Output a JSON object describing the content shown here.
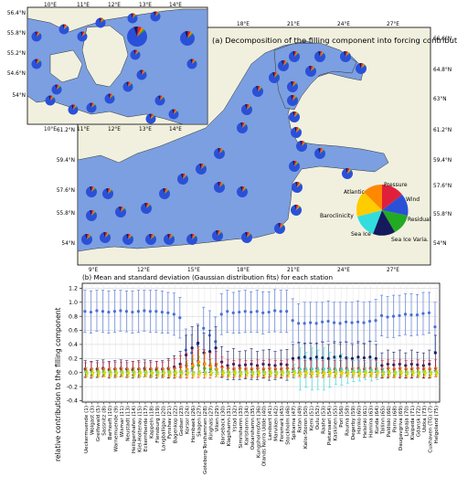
{
  "colors": {
    "sea": "#7b9fe0",
    "land": "#f1f0df",
    "pie_main": "#2b50d8",
    "blue_series": "#4a6fd8",
    "navy_series": "#162060",
    "red_series": "#e0203a",
    "green_series": "#22aa22",
    "orange_series": "#ff9900",
    "cyan_series": "#33dddd",
    "yellow_series": "#dddd00"
  },
  "panel_a": {
    "title": "(a) Decomposition of the filling component into forcing contributions",
    "lon_ticks": [
      "18°E",
      "21°E",
      "24°E",
      "27°E"
    ],
    "lon_ticks_bottom": [
      "9°E",
      "12°E",
      "15°E",
      "18°E",
      "21°E",
      "24°E",
      "27°E"
    ],
    "lat_ticks_left": [
      "61.2°N",
      "59.4°N",
      "57.6°N",
      "55.8°N",
      "54°N"
    ],
    "lat_ticks_right": [
      "66.6°N",
      "64.8°N",
      "63°N",
      "61.2°N",
      "59.4°N",
      "57.6°N",
      "55.8°N",
      "54°N"
    ],
    "inset_lon_ticks": [
      "10°E",
      "11°E",
      "12°E",
      "13°E",
      "14°E"
    ],
    "inset_lat_ticks": [
      "56.4°N",
      "55.8°N",
      "55.2°N",
      "54.6°N",
      "54°N"
    ],
    "legend_pie": {
      "labels": [
        "Pressure",
        "Wind",
        "Residual",
        "Sea Ice Varia.",
        "Sea Ice",
        "Baroclinicity",
        "Atlantic"
      ]
    }
  },
  "chart_data": {
    "type": "scatter",
    "title": "(b) Mean and standard deviation (Gaussian distribution fits) for each station",
    "ylabel": "relative contribution to the filling component",
    "ylim": [
      -0.42,
      1.27
    ],
    "yticks": [
      "-0.4",
      "-0.2",
      "0.0",
      "0.2",
      "0.4",
      "0.6",
      "0.8",
      "1.0",
      "1.2"
    ],
    "grid": true,
    "x": [
      "Ueckermuende (1)",
      "Wolgast (3)",
      "Greifswald (5)",
      "Sassnitz (8)",
      "Barhoeft (10)",
      "Warnemuende (9)",
      "Wismar (11)",
      "Neustadt (13)",
      "Heiligenhafen (14)",
      "Kiel-Holtenau (15)",
      "Eckernfoerde (17)",
      "Kappeln (18)",
      "Flensburg (19)",
      "Langballigau (20)",
      "Fynshav (21)",
      "Bagenkop (22)",
      "Gedser (23)",
      "Korsor (24)",
      "Hornbaek (26)",
      "Skagen (27)",
      "Goteborg-Torshamnen (28)",
      "Ringhals (27)",
      "Viken (29)",
      "Barseback (30)",
      "Klagshamn (31)",
      "Ystad (32)",
      "Simrishamn (33)",
      "Karlshamn (34)",
      "Oskarshamn (35)",
      "Kungsholmsfort (36)",
      "Olands Norra Udde (40)",
      "Landsort (41)",
      "Marviken (42)",
      "Forsmark (45)",
      "Stockholm (46)",
      "Spikarna (47)",
      "Ratan (49)",
      "Kalix-Storon (50)",
      "Kemi (51)",
      "Oulu (52)",
      "Raahe (53)",
      "Pietarsaari (54)",
      "Kaskinen (55)",
      "Pori (56)",
      "Rauma (58)",
      "Degerby (59)",
      "Hanko (60)",
      "Helsinki (61)",
      "Hamina (63)",
      "Kunda (64)",
      "Tallinn (65)",
      "Paldiski (66)",
      "Parnu (68)",
      "Daugavgriva (69)",
      "Liepaja (70)",
      "Klaipeda (71)",
      "Gdansk (72)",
      "Ustka (73)",
      "Cuxhaven (TG) (7)",
      "Helgoland (75)"
    ],
    "series": [
      {
        "values": [
          0.87,
          0.86,
          0.88,
          0.87,
          0.86,
          0.87,
          0.88,
          0.87,
          0.86,
          0.87,
          0.88,
          0.87,
          0.87,
          0.86,
          0.85,
          0.83,
          0.78,
          0.32,
          0.28,
          0.4,
          0.63,
          0.53,
          0.44,
          0.83,
          0.87,
          0.85,
          0.86,
          0.87,
          0.86,
          0.87,
          0.85,
          0.86,
          0.88,
          0.87,
          0.87,
          0.74,
          0.7,
          0.7,
          0.71,
          0.7,
          0.72,
          0.73,
          0.71,
          0.7,
          0.72,
          0.71,
          0.72,
          0.71,
          0.73,
          0.74,
          0.81,
          0.79,
          0.8,
          0.81,
          0.83,
          0.82,
          0.82,
          0.84,
          0.85,
          0.65
        ],
        "err": [
          0.3,
          0.3,
          0.29,
          0.3,
          0.3,
          0.3,
          0.29,
          0.29,
          0.3,
          0.3,
          0.29,
          0.3,
          0.3,
          0.3,
          0.29,
          0.3,
          0.29,
          0.3,
          0.26,
          0.29,
          0.3,
          0.35,
          0.35,
          0.29,
          0.3,
          0.29,
          0.3,
          0.3,
          0.29,
          0.3,
          0.3,
          0.29,
          0.3,
          0.3,
          0.3,
          0.31,
          0.28,
          0.3,
          0.29,
          0.3,
          0.28,
          0.29,
          0.29,
          0.3,
          0.28,
          0.29,
          0.3,
          0.29,
          0.28,
          0.3,
          0.29,
          0.29,
          0.3,
          0.29,
          0.29,
          0.3,
          0.29,
          0.3,
          0.29,
          0.35
        ]
      },
      {
        "values": [
          0.05,
          0.04,
          0.05,
          0.06,
          0.04,
          0.05,
          0.06,
          0.05,
          0.04,
          0.05,
          0.06,
          0.05,
          0.04,
          0.05,
          0.06,
          0.08,
          0.12,
          0.25,
          0.35,
          0.42,
          0.28,
          0.3,
          0.35,
          0.15,
          0.1,
          0.12,
          0.1,
          0.11,
          0.12,
          0.1,
          0.12,
          0.11,
          0.1,
          0.12,
          0.11,
          0.2,
          0.21,
          0.22,
          0.2,
          0.22,
          0.21,
          0.2,
          0.22,
          0.23,
          0.21,
          0.2,
          0.22,
          0.21,
          0.22,
          0.2,
          0.1,
          0.12,
          0.11,
          0.12,
          0.1,
          0.12,
          0.11,
          0.1,
          0.12,
          0.28
        ],
        "err": [
          0.12,
          0.12,
          0.12,
          0.12,
          0.12,
          0.12,
          0.12,
          0.12,
          0.12,
          0.12,
          0.12,
          0.12,
          0.12,
          0.12,
          0.14,
          0.16,
          0.18,
          0.28,
          0.3,
          0.25,
          0.28,
          0.3,
          0.3,
          0.22,
          0.2,
          0.22,
          0.2,
          0.2,
          0.22,
          0.2,
          0.2,
          0.22,
          0.2,
          0.2,
          0.22,
          0.2,
          0.22,
          0.2,
          0.22,
          0.2,
          0.22,
          0.2,
          0.22,
          0.2,
          0.22,
          0.2,
          0.22,
          0.2,
          0.22,
          0.2,
          0.18,
          0.2,
          0.18,
          0.2,
          0.18,
          0.2,
          0.18,
          0.18,
          0.2,
          0.25
        ]
      },
      {
        "values": [
          0.04,
          0.05,
          0.04,
          0.05,
          0.04,
          0.05,
          0.05,
          0.04,
          0.06,
          0.05,
          0.04,
          0.05,
          0.06,
          0.05,
          0.05,
          0.06,
          0.08,
          0.1,
          0.12,
          0.15,
          0.12,
          0.1,
          0.12,
          0.08,
          0.06,
          0.05,
          0.06,
          0.05,
          0.05,
          0.06,
          0.05,
          0.06,
          0.05,
          0.05,
          0.06,
          0.05,
          0.06,
          0.05,
          0.05,
          0.06,
          0.05,
          0.06,
          0.05,
          0.05,
          0.06,
          0.05,
          0.06,
          0.05,
          0.06,
          0.05,
          0.05,
          0.06,
          0.05,
          0.06,
          0.05,
          0.05,
          0.06,
          0.05,
          0.05,
          0.06
        ],
        "err": [
          0.1,
          0.1,
          0.1,
          0.1,
          0.1,
          0.1,
          0.1,
          0.1,
          0.1,
          0.1,
          0.1,
          0.1,
          0.1,
          0.1,
          0.12,
          0.14,
          0.16,
          0.18,
          0.2,
          0.22,
          0.2,
          0.18,
          0.18,
          0.14,
          0.12,
          0.12,
          0.12,
          0.12,
          0.12,
          0.12,
          0.12,
          0.12,
          0.12,
          0.12,
          0.12,
          0.12,
          0.12,
          0.12,
          0.12,
          0.12,
          0.12,
          0.12,
          0.12,
          0.12,
          0.12,
          0.12,
          0.12,
          0.12,
          0.12,
          0.12,
          0.12,
          0.12,
          0.12,
          0.12,
          0.12,
          0.12,
          0.12,
          0.12,
          0.12,
          0.12
        ]
      },
      {
        "values": [
          0.02,
          0.01,
          0.02,
          0.01,
          0.02,
          0.01,
          0.02,
          0.01,
          0.02,
          0.01,
          0.02,
          0.01,
          0.02,
          0.01,
          0.02,
          0.01,
          0.02,
          0.05,
          0.08,
          0.1,
          0.06,
          0.05,
          0.04,
          0.02,
          0.01,
          0.02,
          0.01,
          0.02,
          0.01,
          0.02,
          0.01,
          0.02,
          0.01,
          0.02,
          0.01,
          0.02,
          0.01,
          0.02,
          0.01,
          0.02,
          0.01,
          0.02,
          0.01,
          0.02,
          0.01,
          0.02,
          0.01,
          0.02,
          0.01,
          0.02,
          0.01,
          0.02,
          0.01,
          0.02,
          0.01,
          0.02,
          0.01,
          0.02,
          0.01,
          0.02
        ],
        "err": [
          0.05,
          0.05,
          0.05,
          0.05,
          0.05,
          0.05,
          0.05,
          0.05,
          0.05,
          0.05,
          0.05,
          0.05,
          0.05,
          0.05,
          0.05,
          0.05,
          0.05,
          0.08,
          0.1,
          0.12,
          0.08,
          0.08,
          0.06,
          0.05,
          0.05,
          0.05,
          0.05,
          0.05,
          0.05,
          0.05,
          0.05,
          0.05,
          0.05,
          0.05,
          0.05,
          0.05,
          0.05,
          0.05,
          0.05,
          0.05,
          0.05,
          0.05,
          0.05,
          0.05,
          0.05,
          0.05,
          0.05,
          0.05,
          0.05,
          0.05,
          0.05,
          0.05,
          0.05,
          0.05,
          0.05,
          0.05,
          0.05,
          0.05,
          0.05,
          0.05
        ]
      },
      {
        "values": [
          0.01,
          0.0,
          0.01,
          0.0,
          0.01,
          0.0,
          0.01,
          0.0,
          0.01,
          0.0,
          0.01,
          0.0,
          0.01,
          0.0,
          0.01,
          0.0,
          0.02,
          0.05,
          0.1,
          0.15,
          0.12,
          0.08,
          0.05,
          0.01,
          0.0,
          0.01,
          0.0,
          0.01,
          0.0,
          0.01,
          0.0,
          0.01,
          0.0,
          0.01,
          0.0,
          0.01,
          0.0,
          0.01,
          0.0,
          0.01,
          0.0,
          0.01,
          0.0,
          0.01,
          0.0,
          0.01,
          0.0,
          0.01,
          0.0,
          0.01,
          0.0,
          0.01,
          0.0,
          0.01,
          0.0,
          0.01,
          0.0,
          0.01,
          0.0,
          0.01
        ],
        "err": [
          0.06,
          0.06,
          0.06,
          0.06,
          0.06,
          0.06,
          0.06,
          0.06,
          0.06,
          0.06,
          0.06,
          0.06,
          0.06,
          0.06,
          0.06,
          0.06,
          0.08,
          0.12,
          0.15,
          0.18,
          0.15,
          0.12,
          0.08,
          0.06,
          0.06,
          0.06,
          0.06,
          0.06,
          0.06,
          0.06,
          0.06,
          0.06,
          0.06,
          0.06,
          0.06,
          0.06,
          0.06,
          0.06,
          0.06,
          0.06,
          0.06,
          0.06,
          0.06,
          0.06,
          0.06,
          0.06,
          0.06,
          0.06,
          0.06,
          0.06,
          0.06,
          0.06,
          0.06,
          0.06,
          0.06,
          0.06,
          0.06,
          0.06,
          0.06,
          0.06
        ]
      },
      {
        "values": [
          0.0,
          0.0,
          0.0,
          0.0,
          0.0,
          0.0,
          0.0,
          0.0,
          0.0,
          0.0,
          0.0,
          0.0,
          0.0,
          0.0,
          0.0,
          0.0,
          0.0,
          0.0,
          0.0,
          0.0,
          0.0,
          0.0,
          0.0,
          0.0,
          0.0,
          0.0,
          0.0,
          0.0,
          0.0,
          0.0,
          0.0,
          0.0,
          0.0,
          0.0,
          0.0,
          0.02,
          0.05,
          0.04,
          0.05,
          0.04,
          0.05,
          0.04,
          0.03,
          0.04,
          0.03,
          0.02,
          0.03,
          0.02,
          0.03,
          0.02,
          0.01,
          0.0,
          0.0,
          0.0,
          0.0,
          0.0,
          0.0,
          0.0,
          0.0,
          0.0
        ],
        "err": [
          0.0,
          0.0,
          0.0,
          0.0,
          0.0,
          0.0,
          0.0,
          0.0,
          0.0,
          0.0,
          0.0,
          0.0,
          0.0,
          0.0,
          0.0,
          0.0,
          0.0,
          0.0,
          0.0,
          0.0,
          0.0,
          0.0,
          0.0,
          0.0,
          0.0,
          0.0,
          0.0,
          0.0,
          0.0,
          0.0,
          0.0,
          0.0,
          0.0,
          0.0,
          0.0,
          0.1,
          0.3,
          0.25,
          0.3,
          0.28,
          0.3,
          0.25,
          0.2,
          0.22,
          0.18,
          0.15,
          0.15,
          0.12,
          0.15,
          0.12,
          0.05,
          0.0,
          0.0,
          0.0,
          0.0,
          0.0,
          0.0,
          0.0,
          0.0,
          0.0
        ]
      },
      {
        "values": [
          -0.02,
          -0.01,
          -0.02,
          -0.01,
          -0.02,
          -0.01,
          -0.02,
          -0.01,
          -0.02,
          -0.01,
          -0.02,
          -0.01,
          -0.02,
          -0.01,
          -0.02,
          -0.01,
          -0.02,
          -0.01,
          -0.02,
          -0.01,
          -0.02,
          -0.01,
          -0.02,
          -0.01,
          -0.02,
          -0.01,
          -0.02,
          -0.01,
          -0.02,
          -0.01,
          -0.02,
          -0.01,
          -0.02,
          -0.01,
          -0.02,
          -0.01,
          -0.02,
          -0.01,
          -0.02,
          -0.01,
          -0.02,
          -0.01,
          -0.02,
          -0.01,
          -0.02,
          -0.01,
          -0.02,
          -0.01,
          -0.02,
          -0.01,
          -0.02,
          -0.01,
          -0.02,
          -0.01,
          -0.02,
          -0.01,
          -0.02,
          -0.01,
          -0.02,
          -0.01
        ],
        "err": [
          0.04,
          0.04,
          0.04,
          0.04,
          0.04,
          0.04,
          0.04,
          0.04,
          0.04,
          0.04,
          0.04,
          0.04,
          0.04,
          0.04,
          0.04,
          0.04,
          0.04,
          0.04,
          0.04,
          0.04,
          0.04,
          0.04,
          0.04,
          0.04,
          0.04,
          0.04,
          0.04,
          0.04,
          0.04,
          0.04,
          0.04,
          0.04,
          0.04,
          0.04,
          0.04,
          0.04,
          0.04,
          0.04,
          0.04,
          0.04,
          0.04,
          0.04,
          0.04,
          0.04,
          0.04,
          0.04,
          0.04,
          0.04,
          0.04,
          0.04,
          0.04,
          0.04,
          0.04,
          0.04,
          0.04,
          0.04,
          0.04,
          0.04,
          0.04,
          0.04
        ]
      }
    ]
  }
}
